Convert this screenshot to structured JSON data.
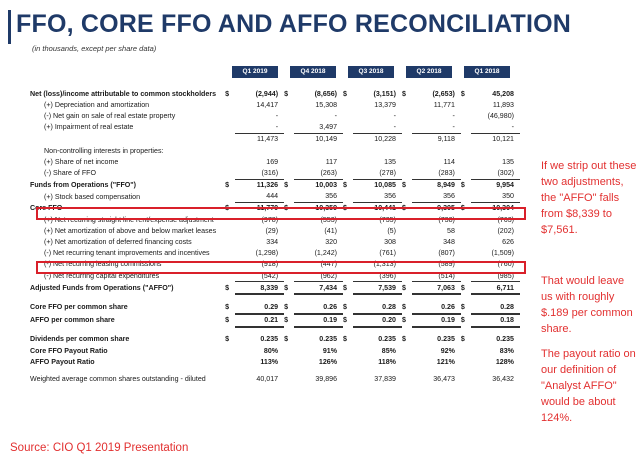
{
  "title": "FFO, CORE FFO AND AFFO RECONCILIATION",
  "subtitle": "(in thousands, except per share data)",
  "columns": [
    "Q1 2019",
    "Q4 2018",
    "Q3 2018",
    "Q2 2018",
    "Q1 2018"
  ],
  "rows": [
    {
      "label": "Net (loss)/income attributable to common stockholders",
      "cls": "b",
      "dollar": true,
      "values": [
        "(2,944)",
        "(8,656)",
        "(3,151)",
        "(2,653)",
        "45,208"
      ]
    },
    {
      "label": "(+) Depreciation and amortization",
      "cls": "indent",
      "values": [
        "14,417",
        "15,308",
        "13,379",
        "11,771",
        "11,893"
      ]
    },
    {
      "label": "(-) Net gain on sale of real estate property",
      "cls": "indent",
      "values": [
        "-",
        "-",
        "-",
        "-",
        "(46,980)"
      ]
    },
    {
      "label": "(+) Impairment of real estate",
      "cls": "indent",
      "values": [
        "-",
        "3,497",
        "-",
        "-",
        "-"
      ]
    },
    {
      "label": "",
      "cls": "sub",
      "values": [
        "11,473",
        "10,149",
        "10,228",
        "9,118",
        "10,121"
      ]
    },
    {
      "label": "Non-controlling interests in properties:",
      "cls": "indent",
      "values": [
        "",
        "",
        "",
        "",
        ""
      ]
    },
    {
      "label": "(+) Share of net income",
      "cls": "indent",
      "values": [
        "169",
        "117",
        "135",
        "114",
        "135"
      ]
    },
    {
      "label": "(-) Share of FFO",
      "cls": "indent",
      "values": [
        "(316)",
        "(263)",
        "(278)",
        "(283)",
        "(302)"
      ]
    },
    {
      "label": "Funds from Operations (\"FFO\")",
      "cls": "b sgl",
      "dollar": true,
      "values": [
        "11,326",
        "10,003",
        "10,085",
        "8,949",
        "9,954"
      ]
    },
    {
      "label": "(+) Stock based compensation",
      "cls": "indent",
      "values": [
        "444",
        "356",
        "356",
        "356",
        "350"
      ]
    },
    {
      "label": "Core FFO",
      "cls": "b sgl",
      "dollar": true,
      "values": [
        "11,770",
        "10,359",
        "10,441",
        "9,305",
        "10,304"
      ]
    },
    {
      "label": "(+) Net recurring straight line rent/expense adjustment",
      "cls": "indent",
      "values": [
        "(978)",
        "(553)",
        "(735)",
        "(738)",
        "(763)"
      ]
    },
    {
      "label": "(+) Net amortization of above and below market leases",
      "cls": "indent",
      "values": [
        "(29)",
        "(41)",
        "(5)",
        "58",
        "(202)"
      ]
    },
    {
      "label": "(+) Net amortization of deferred financing costs",
      "cls": "indent",
      "values": [
        "334",
        "320",
        "308",
        "348",
        "626"
      ]
    },
    {
      "label": "(-) Net recurring tenant improvements and incentives",
      "cls": "indent",
      "values": [
        "(1,298)",
        "(1,242)",
        "(761)",
        "(807)",
        "(1,509)"
      ]
    },
    {
      "label": "(-) Net recurring leasing commissions",
      "cls": "indent",
      "values": [
        "(918)",
        "(447)",
        "(1,313)",
        "(589)",
        "(760)"
      ]
    },
    {
      "label": "(-) Net recurring capital expenditures",
      "cls": "indent",
      "values": [
        "(542)",
        "(962)",
        "(396)",
        "(514)",
        "(985)"
      ]
    },
    {
      "label": "Adjusted Funds from Operations (\"AFFO\")",
      "cls": "b sgl dbl",
      "dollar": true,
      "values": [
        "8,339",
        "7,434",
        "7,539",
        "7,063",
        "6,711"
      ]
    },
    {
      "label": "",
      "cls": "spacer",
      "values": [
        "",
        "",
        "",
        "",
        ""
      ]
    },
    {
      "label": "Core FFO per common share",
      "cls": "b dbl",
      "dollar": true,
      "values": [
        "0.29",
        "0.26",
        "0.28",
        "0.26",
        "0.28"
      ]
    },
    {
      "label": "AFFO per common share",
      "cls": "b dbl",
      "dollar": true,
      "values": [
        "0.21",
        "0.19",
        "0.20",
        "0.19",
        "0.18"
      ]
    },
    {
      "label": "",
      "cls": "spacer",
      "values": [
        "",
        "",
        "",
        "",
        ""
      ]
    },
    {
      "label": "Dividends per common share",
      "cls": "b",
      "dollar": true,
      "values": [
        "0.235",
        "0.235",
        "0.235",
        "0.235",
        "0.235"
      ]
    },
    {
      "label": "Core FFO Payout Ratio",
      "cls": "b",
      "values": [
        "80%",
        "91%",
        "85%",
        "92%",
        "83%"
      ]
    },
    {
      "label": "AFFO Payout Ratio",
      "cls": "b",
      "values": [
        "113%",
        "126%",
        "118%",
        "121%",
        "128%"
      ]
    },
    {
      "label": "",
      "cls": "spacer",
      "values": [
        "",
        "",
        "",
        "",
        ""
      ]
    },
    {
      "label": "Weighted average common shares outstanding - diluted",
      "cls": "",
      "values": [
        "40,017",
        "39,896",
        "37,839",
        "36,473",
        "36,432"
      ]
    }
  ],
  "notes": [
    "If we strip out these two adjustments, the \"AFFO\" falls from $8,339 to $7,561.",
    "That would leave us with roughly $.189 per common share.",
    "The payout ratio on our definition of \"Analyst AFFO\" would be about 124%."
  ],
  "source": "Source: CIO Q1 2019 Presentation",
  "dollar_sign": "$",
  "accent_color": "#1f3a68",
  "highlight_color": "#d9202a"
}
